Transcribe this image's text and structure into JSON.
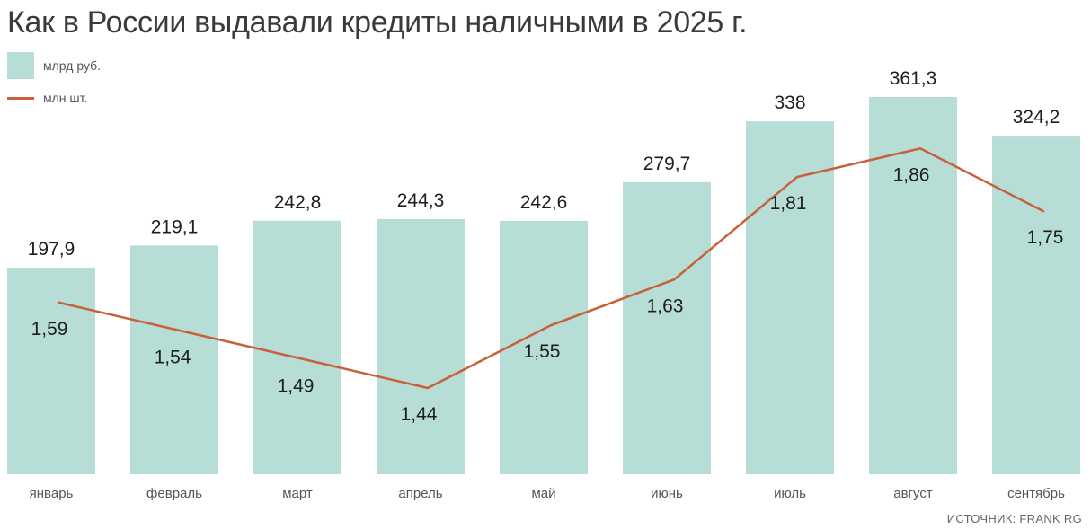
{
  "title": "Как в России выдавали кредиты наличными в 2025 г.",
  "legend": {
    "bars_label": "млрд руб.",
    "line_label": "млн шт."
  },
  "source": "ИСТОЧНИК: FRANK RG",
  "colors": {
    "bar": "#b6ddd6",
    "line": "#c8603a",
    "text": "#1e1e1e",
    "axis_text": "#555555"
  },
  "chart_data": {
    "type": "bar",
    "categories": [
      "январь",
      "февраль",
      "март",
      "апрель",
      "май",
      "июнь",
      "июль",
      "август",
      "сентябрь"
    ],
    "series": [
      {
        "name": "млрд руб.",
        "type": "bar",
        "values": [
          197.9,
          219.1,
          242.8,
          244.3,
          242.6,
          279.7,
          338,
          361.3,
          324.2
        ],
        "labels": [
          "197,9",
          "219,1",
          "242,8",
          "244,3",
          "242,6",
          "279,7",
          "338",
          "361,3",
          "324,2"
        ]
      },
      {
        "name": "млн шт.",
        "type": "line",
        "values": [
          1.59,
          1.54,
          1.49,
          1.44,
          1.55,
          1.63,
          1.81,
          1.86,
          1.75
        ],
        "labels": [
          "1,59",
          "1,54",
          "1,49",
          "1,44",
          "1,55",
          "1,63",
          "1,81",
          "1,86",
          "1,75"
        ]
      }
    ],
    "title": "Как в России выдавали кредиты наличными в 2025 г.",
    "xlabel": "",
    "ylabel": "",
    "grid": false,
    "legend_position": "top-left"
  }
}
